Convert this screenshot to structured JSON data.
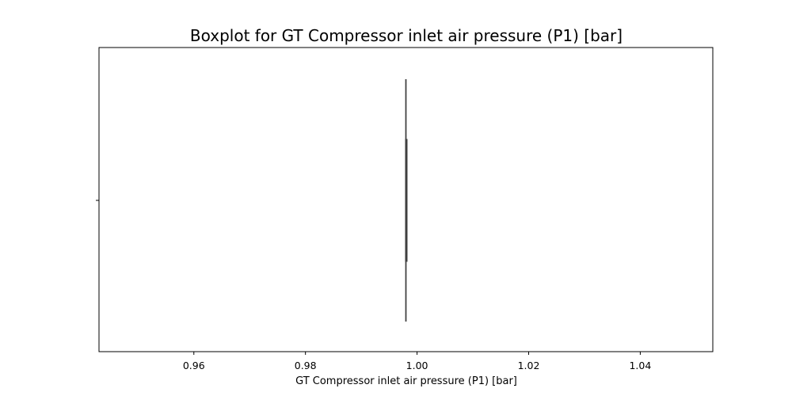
{
  "chart_data": {
    "type": "boxplot",
    "title": "Boxplot for GT Compressor inlet air pressure (P1) [bar]",
    "xlabel": "GT Compressor inlet air pressure (P1) [bar]",
    "ylabel": "",
    "orientation": "horizontal",
    "xlim": [
      0.943,
      1.053
    ],
    "x_ticks": [
      0.96,
      0.98,
      1.0,
      1.02,
      1.04
    ],
    "x_tick_labels": [
      "0.96",
      "0.98",
      "1.00",
      "1.02",
      "1.04"
    ],
    "grid": false,
    "box": {
      "min": 0.998,
      "q1": 0.998,
      "median": 0.998,
      "q3": 0.998,
      "max": 0.998
    },
    "colors": {
      "box_edge": "#3f3f3f",
      "axes": "#000000"
    }
  }
}
